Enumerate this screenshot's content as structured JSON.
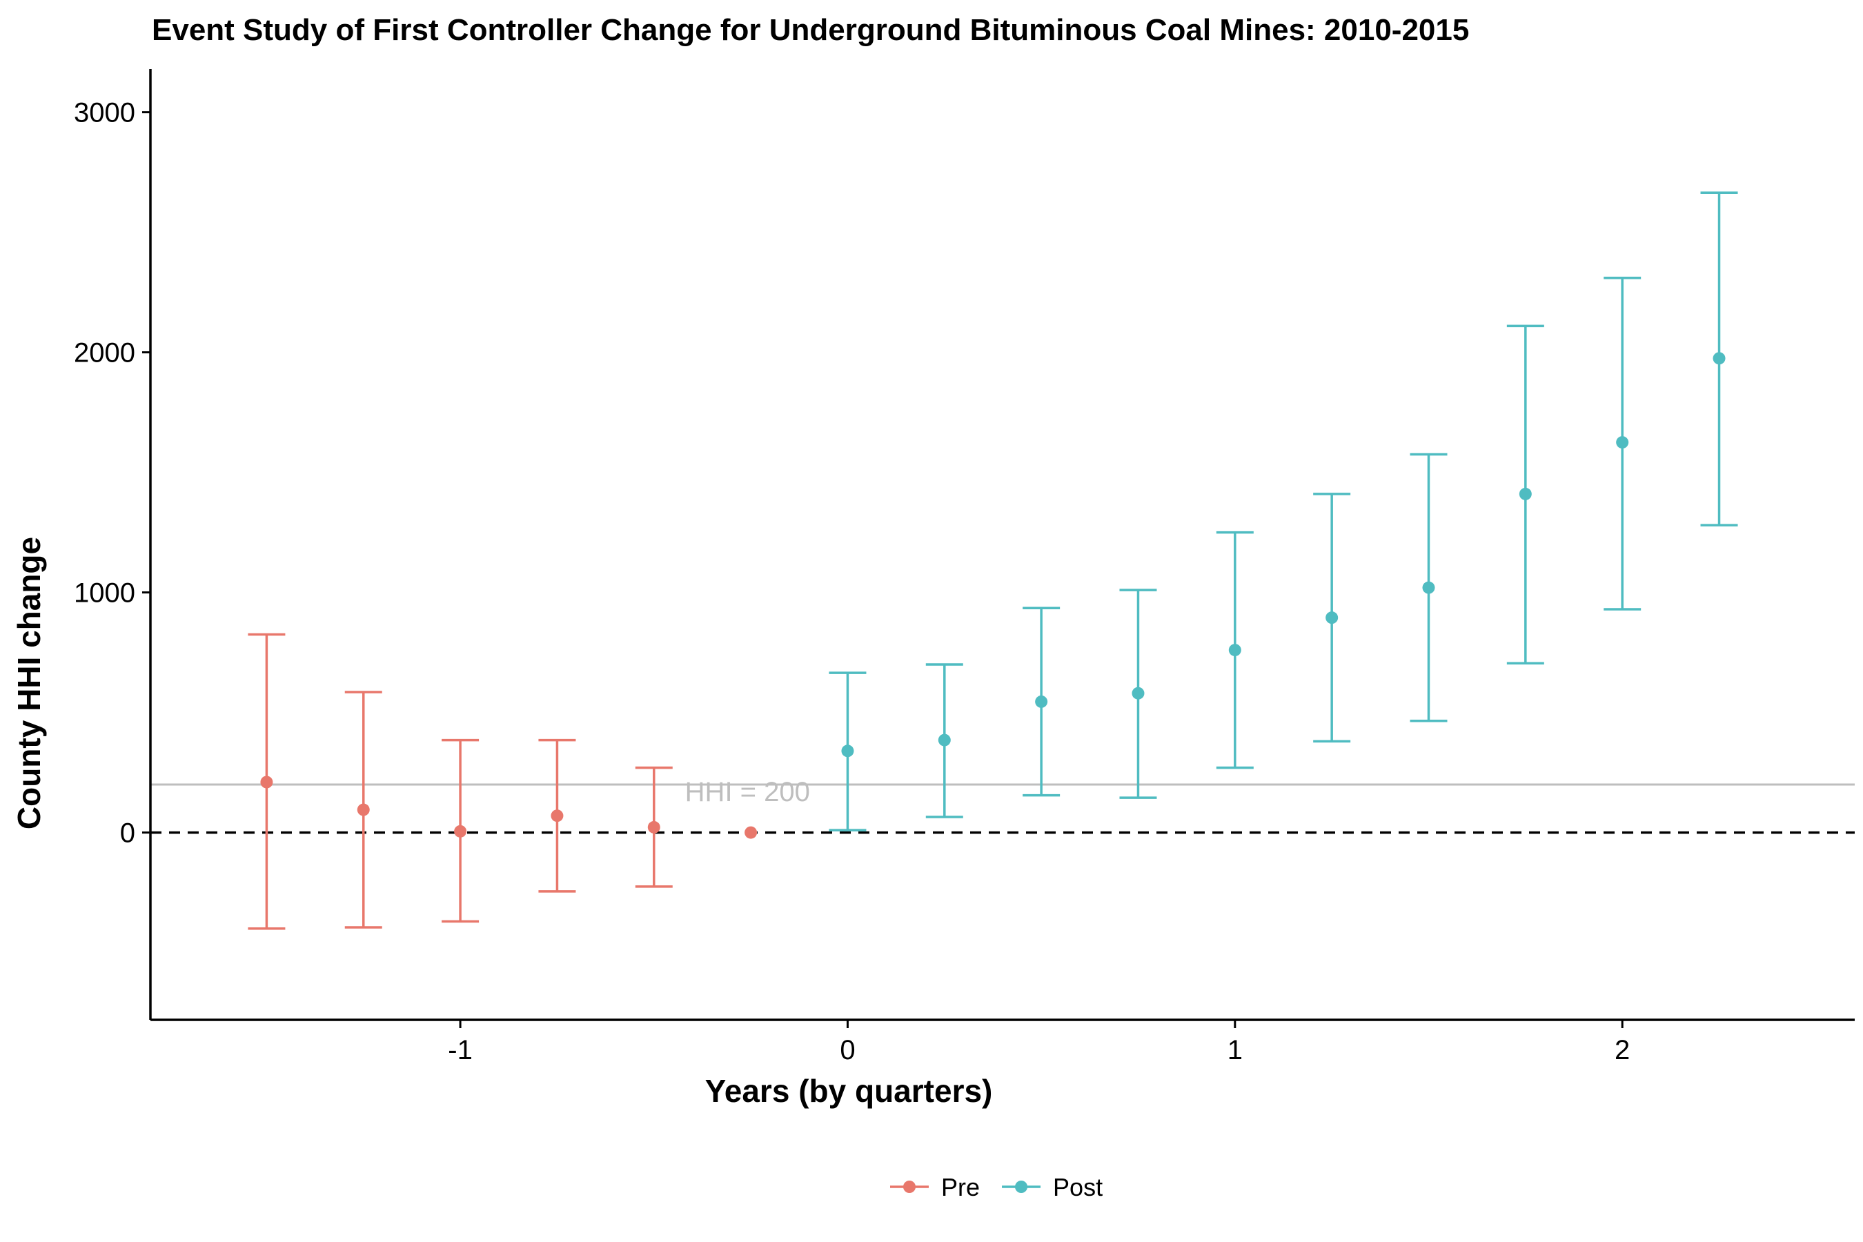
{
  "chart_data": {
    "type": "scatter",
    "title": "Event Study of First Controller Change for Underground Bituminous Coal Mines: 2010-2015",
    "xlabel": "Years (by quarters)",
    "ylabel": "County HHI change",
    "xlim": [
      -1.8,
      2.6
    ],
    "ylim": [
      -780,
      3180
    ],
    "x_ticks": [
      -1,
      0,
      1,
      2
    ],
    "x_tick_labels": [
      "-1",
      "0",
      "1",
      "2"
    ],
    "y_ticks": [
      0,
      1000,
      2000,
      3000
    ],
    "y_tick_labels": [
      "0",
      "1000",
      "2000",
      "3000"
    ],
    "grid": false,
    "legend_position": "bottom",
    "zero_line": {
      "y": 0,
      "style": "dashed",
      "color": "#000000"
    },
    "reference_line": {
      "y": 200,
      "label": "HHI = 200",
      "label_x": -0.42,
      "color": "#bebebe"
    },
    "series": [
      {
        "name": "Pre",
        "color": "#e8776b",
        "points": [
          {
            "x": -1.5,
            "y": 210,
            "lo": -400,
            "hi": 825
          },
          {
            "x": -1.25,
            "y": 95,
            "lo": -395,
            "hi": 585
          },
          {
            "x": -1.0,
            "y": 5,
            "lo": -370,
            "hi": 385
          },
          {
            "x": -0.75,
            "y": 70,
            "lo": -245,
            "hi": 385
          },
          {
            "x": -0.5,
            "y": 22,
            "lo": -225,
            "hi": 270
          },
          {
            "x": -0.25,
            "y": 0
          }
        ]
      },
      {
        "name": "Post",
        "color": "#4fbcc1",
        "points": [
          {
            "x": 0.0,
            "y": 340,
            "lo": 10,
            "hi": 665
          },
          {
            "x": 0.25,
            "y": 385,
            "lo": 65,
            "hi": 700
          },
          {
            "x": 0.5,
            "y": 545,
            "lo": 155,
            "hi": 935
          },
          {
            "x": 0.75,
            "y": 580,
            "lo": 145,
            "hi": 1010
          },
          {
            "x": 1.0,
            "y": 760,
            "lo": 270,
            "hi": 1250
          },
          {
            "x": 1.25,
            "y": 895,
            "lo": 380,
            "hi": 1410
          },
          {
            "x": 1.5,
            "y": 1020,
            "lo": 465,
            "hi": 1575
          },
          {
            "x": 1.75,
            "y": 1410,
            "lo": 705,
            "hi": 2110
          },
          {
            "x": 2.0,
            "y": 1625,
            "lo": 930,
            "hi": 2310
          },
          {
            "x": 2.25,
            "y": 1975,
            "lo": 1280,
            "hi": 2665
          }
        ]
      }
    ]
  }
}
